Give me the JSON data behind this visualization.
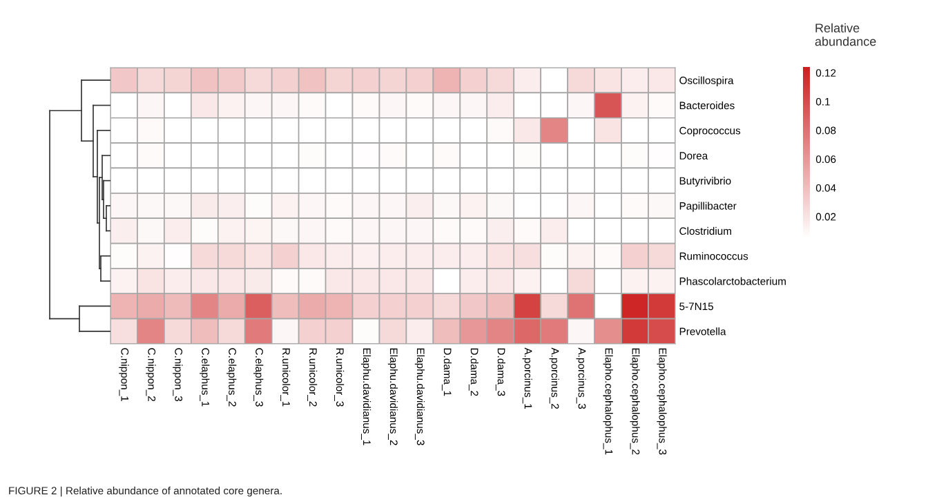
{
  "chart_data": {
    "type": "heatmap",
    "categories": [
      "C.nippon_1",
      "C.nippon_2",
      "C.nippon_3",
      "C.elaphus_1",
      "C.elaphus_2",
      "C.elaphus_3",
      "R.unicolor_1",
      "R.unicolor_2",
      "R.unicolor_3",
      "Elaphu.davidianus_1",
      "Elaphu.davidianus_2",
      "Elaphu.davidianus_3",
      "D.dama_1",
      "D.dama_2",
      "D.dama_3",
      "A.porcinus_1",
      "A.porcinus_2",
      "A.porcinus_3",
      "Elapho.cephalophus_1",
      "Elapho.cephalophus_2",
      "Elapho.cephalophus_3"
    ],
    "y_categories": [
      "Oscillospira",
      "Bacteroides",
      "Coprococcus",
      "Dorea",
      "Butyrivibrio",
      "Papillibacter",
      "Clostridium",
      "Ruminococcus",
      "Phascolarctobacterium",
      "5-7N15",
      "Prevotella"
    ],
    "cells": [
      [
        0.035,
        0.025,
        0.028,
        0.038,
        0.033,
        0.025,
        0.03,
        0.038,
        0.028,
        0.03,
        0.028,
        0.03,
        0.045,
        0.03,
        0.025,
        0.015,
        0.005,
        0.025,
        0.02,
        0.015,
        0.018
      ],
      [
        0.005,
        0.01,
        0.005,
        0.018,
        0.012,
        0.01,
        0.01,
        0.008,
        0.005,
        0.008,
        0.01,
        0.008,
        0.01,
        0.01,
        0.015,
        0.005,
        0.005,
        0.01,
        0.095,
        0.012,
        0.008
      ],
      [
        0.005,
        0.008,
        0.005,
        0.005,
        0.005,
        0.005,
        0.005,
        0.005,
        0.005,
        0.005,
        0.005,
        0.005,
        0.005,
        0.005,
        0.008,
        0.018,
        0.07,
        0.005,
        0.02,
        0.005,
        0.005
      ],
      [
        0.005,
        0.008,
        0.005,
        0.005,
        0.005,
        0.005,
        0.005,
        0.007,
        0.005,
        0.006,
        0.008,
        0.005,
        0.008,
        0.005,
        0.005,
        0.007,
        0.005,
        0.005,
        0.005,
        0.007,
        0.006
      ],
      [
        0.005,
        0.005,
        0.005,
        0.005,
        0.005,
        0.005,
        0.005,
        0.005,
        0.005,
        0.005,
        0.005,
        0.005,
        0.005,
        0.005,
        0.005,
        0.005,
        0.005,
        0.005,
        0.005,
        0.005,
        0.005
      ],
      [
        0.01,
        0.009,
        0.009,
        0.016,
        0.014,
        0.007,
        0.012,
        0.01,
        0.008,
        0.01,
        0.01,
        0.014,
        0.009,
        0.012,
        0.009,
        0.005,
        0.005,
        0.01,
        0.005,
        0.008,
        0.009
      ],
      [
        0.014,
        0.009,
        0.015,
        0.007,
        0.012,
        0.011,
        0.009,
        0.01,
        0.008,
        0.01,
        0.01,
        0.01,
        0.008,
        0.008,
        0.014,
        0.008,
        0.015,
        0.005,
        0.005,
        0.005,
        0.005
      ],
      [
        0.007,
        0.012,
        0.006,
        0.025,
        0.025,
        0.02,
        0.03,
        0.018,
        0.015,
        0.013,
        0.015,
        0.015,
        0.015,
        0.015,
        0.02,
        0.022,
        0.007,
        0.012,
        0.008,
        0.03,
        0.025
      ],
      [
        0.012,
        0.02,
        0.015,
        0.018,
        0.018,
        0.016,
        0.008,
        0.008,
        0.018,
        0.018,
        0.018,
        0.018,
        0.005,
        0.015,
        0.018,
        0.012,
        0.005,
        0.025,
        0.005,
        0.012,
        0.012
      ],
      [
        0.045,
        0.05,
        0.042,
        0.07,
        0.05,
        0.09,
        0.04,
        0.05,
        0.045,
        0.03,
        0.03,
        0.03,
        0.025,
        0.035,
        0.04,
        0.105,
        0.025,
        0.08,
        0.005,
        0.12,
        0.11
      ],
      [
        0.022,
        0.07,
        0.025,
        0.04,
        0.025,
        0.075,
        0.01,
        0.03,
        0.03,
        0.007,
        0.025,
        0.015,
        0.04,
        0.06,
        0.07,
        0.085,
        0.075,
        0.01,
        0.065,
        0.11,
        0.1
      ]
    ],
    "clabel": "Relative\nabundance",
    "clim": [
      0.005,
      0.124
    ],
    "cticks": [
      0.02,
      0.04,
      0.06,
      0.08,
      0.1,
      0.12
    ],
    "colors": [
      "#ffffff",
      "#cc1f1f"
    ],
    "annotations": [
      "FIGURE 2 | Relative abundance of annotated core genera."
    ]
  }
}
